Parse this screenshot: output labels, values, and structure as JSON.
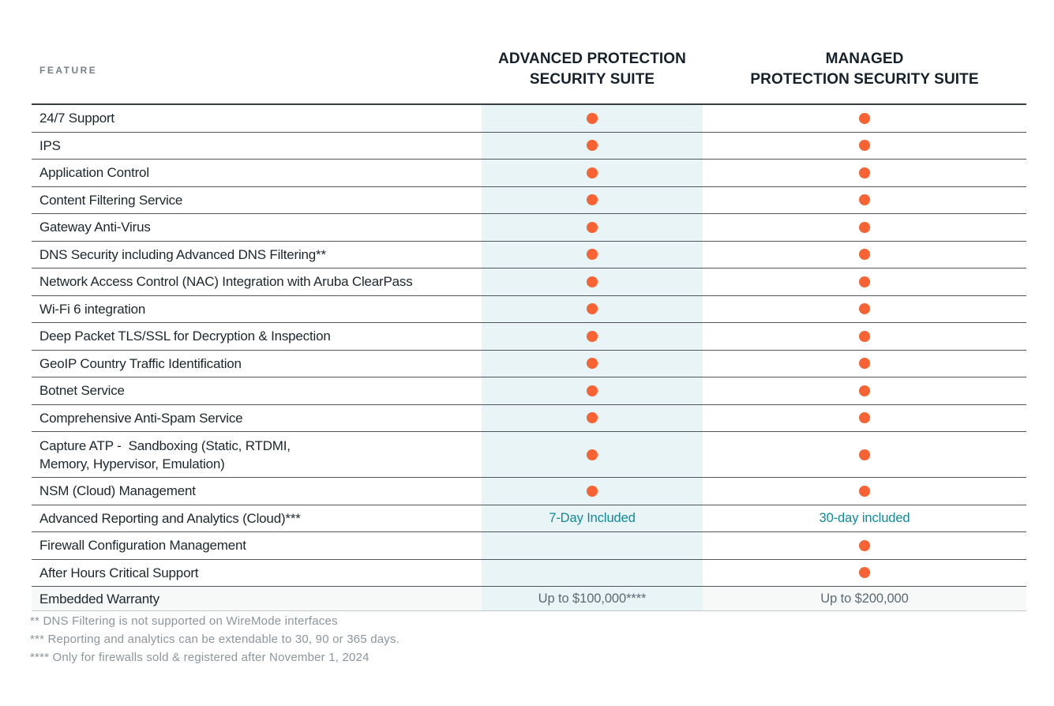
{
  "page": {
    "feature_header": "FEATURE"
  },
  "table": {
    "columns": [
      {
        "id": "advanced",
        "title": "ADVANCED PROTECTION\nSECURITY SUITE"
      },
      {
        "id": "managed",
        "title": "MANAGED\nPROTECTION SECURITY SUITE"
      }
    ],
    "rows": [
      {
        "feature": "24/7 Support",
        "advanced": {
          "type": "dot"
        },
        "managed": {
          "type": "dot"
        }
      },
      {
        "feature": "IPS",
        "advanced": {
          "type": "dot"
        },
        "managed": {
          "type": "dot"
        }
      },
      {
        "feature": "Application Control",
        "advanced": {
          "type": "dot"
        },
        "managed": {
          "type": "dot"
        }
      },
      {
        "feature": "Content Filtering Service",
        "advanced": {
          "type": "dot"
        },
        "managed": {
          "type": "dot"
        }
      },
      {
        "feature": "Gateway Anti-Virus",
        "advanced": {
          "type": "dot"
        },
        "managed": {
          "type": "dot"
        }
      },
      {
        "feature": "DNS Security including Advanced DNS Filtering**",
        "advanced": {
          "type": "dot"
        },
        "managed": {
          "type": "dot"
        }
      },
      {
        "feature": "Network Access Control (NAC) Integration with Aruba ClearPass",
        "advanced": {
          "type": "dot"
        },
        "managed": {
          "type": "dot"
        }
      },
      {
        "feature": "Wi-Fi 6 integration",
        "advanced": {
          "type": "dot"
        },
        "managed": {
          "type": "dot"
        }
      },
      {
        "feature": "Deep Packet TLS/SSL for Decryption & Inspection",
        "advanced": {
          "type": "dot"
        },
        "managed": {
          "type": "dot"
        }
      },
      {
        "feature": "GeoIP Country Traffic Identification",
        "advanced": {
          "type": "dot"
        },
        "managed": {
          "type": "dot"
        }
      },
      {
        "feature": "Botnet Service",
        "advanced": {
          "type": "dot"
        },
        "managed": {
          "type": "dot"
        }
      },
      {
        "feature": "Comprehensive Anti-Spam Service",
        "advanced": {
          "type": "dot"
        },
        "managed": {
          "type": "dot"
        }
      },
      {
        "feature": "Capture ATP -  Sandboxing (Static, RTDMI,\nMemory, Hypervisor, Emulation)",
        "advanced": {
          "type": "dot"
        },
        "managed": {
          "type": "dot"
        }
      },
      {
        "feature": "NSM (Cloud) Management",
        "advanced": {
          "type": "dot"
        },
        "managed": {
          "type": "dot"
        }
      },
      {
        "feature": "Advanced Reporting and Analytics (Cloud)***",
        "advanced": {
          "type": "text",
          "style": "teal",
          "value": "7-Day Included"
        },
        "managed": {
          "type": "text",
          "style": "teal",
          "value": "30-day included"
        }
      },
      {
        "feature": "Firewall Configuration Management",
        "advanced": {
          "type": "empty"
        },
        "managed": {
          "type": "dot"
        }
      },
      {
        "feature": "After Hours Critical Support",
        "advanced": {
          "type": "empty"
        },
        "managed": {
          "type": "dot"
        }
      },
      {
        "feature": "Embedded Warranty",
        "advanced": {
          "type": "text",
          "style": "muted",
          "value": "Up to $100,000****"
        },
        "managed": {
          "type": "text",
          "style": "muted",
          "value": "Up to $200,000"
        }
      }
    ]
  },
  "footnotes": [
    "** DNS Filtering is not supported on WireMode interfaces",
    "*** Reporting and analytics can be extendable to 30, 90 or 365 days.",
    "**** Only for firewalls sold & registered after November 1, 2024"
  ],
  "colors": {
    "dot_orange": "#f96333",
    "trial_teal": "#0f8a9c",
    "advanced_column_band": "#e9f4f7",
    "warranty_gray": "#5d6a72"
  }
}
